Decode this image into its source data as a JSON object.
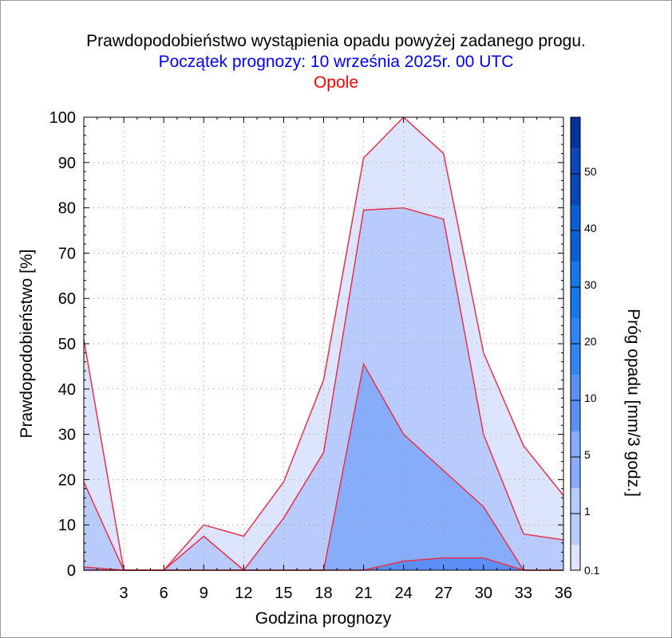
{
  "header": {
    "title": "Prawdopodobieństwo wystąpienia opadu powyżej zadanego progu.",
    "subtitle": "Początek prognozy: 10 września 2025r. 00 UTC",
    "location": "Opole",
    "subtitle_color": "#0000ff",
    "location_color": "#ff0000"
  },
  "chart_data": {
    "type": "area",
    "xlabel": "Godzina prognozy",
    "ylabel": "Prawdopodobieństwo [%]",
    "colorbar_label": "Próg opadu [mm/3 godz.]",
    "xlim": [
      0,
      36
    ],
    "ylim": [
      0,
      100
    ],
    "grid": true,
    "x": [
      0,
      3,
      6,
      9,
      12,
      15,
      18,
      21,
      24,
      27,
      30,
      33,
      36
    ],
    "x_ticks": [
      "3",
      "6",
      "9",
      "12",
      "15",
      "18",
      "21",
      "24",
      "27",
      "30",
      "33",
      "36"
    ],
    "y_ticks": [
      "0",
      "10",
      "20",
      "30",
      "40",
      "50",
      "60",
      "70",
      "80",
      "90",
      "100"
    ],
    "line_color": "#e8304a",
    "series": [
      {
        "name": "0.1",
        "color": "#dde4fd",
        "values": [
          51,
          0,
          0,
          10,
          7.5,
          19.5,
          42,
          91,
          100,
          92,
          48,
          27.5,
          16.5
        ]
      },
      {
        "name": "1",
        "color": "#b9cbfc",
        "values": [
          19.5,
          0,
          0,
          7.5,
          0,
          11.5,
          26,
          79.5,
          80,
          77.5,
          30,
          8,
          6.7
        ]
      },
      {
        "name": "5",
        "color": "#86acfa",
        "values": [
          0.7,
          0,
          0,
          0,
          0,
          0,
          0,
          45.5,
          30,
          22,
          14,
          0,
          0
        ]
      },
      {
        "name": "10",
        "color": "#5c8ff6",
        "values": [
          0,
          0,
          0,
          0,
          0,
          0,
          0,
          0,
          2,
          2.7,
          2.7,
          0,
          0
        ]
      }
    ],
    "colorbar": {
      "tick_labels": [
        "0.1",
        "1",
        "5",
        "10",
        "20",
        "30",
        "40",
        "50"
      ],
      "band_colors": [
        "#dde4fd",
        "#b9cbfc",
        "#86acfa",
        "#5c8ff6",
        "#2f85f2",
        "#1378e8",
        "#0b5fd4",
        "#0848b8",
        "#05339a"
      ]
    }
  }
}
